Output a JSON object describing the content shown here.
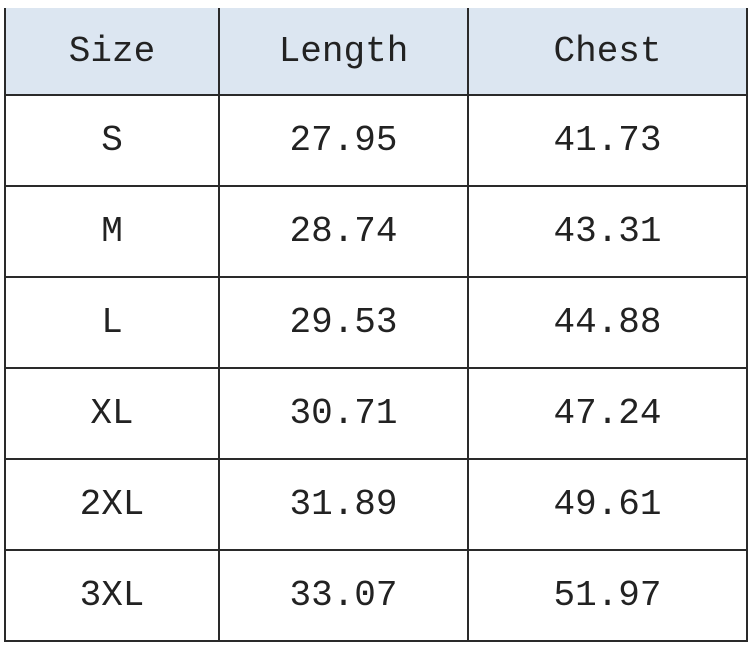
{
  "table": {
    "header_bg": "#dce6f1",
    "columns": [
      "Size",
      "Length",
      "Chest"
    ],
    "rows": [
      [
        "S",
        "27.95",
        "41.73"
      ],
      [
        "M",
        "28.74",
        "43.31"
      ],
      [
        "L",
        "29.53",
        "44.88"
      ],
      [
        "XL",
        "30.71",
        "47.24"
      ],
      [
        "2XL",
        "31.89",
        "49.61"
      ],
      [
        "3XL",
        "33.07",
        "51.97"
      ]
    ]
  }
}
